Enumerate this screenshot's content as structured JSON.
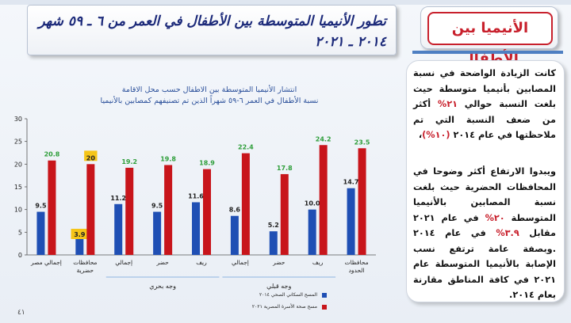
{
  "slide": {
    "title_line1": "تطور الأنيميا المتوسطة بين الأطفال في العمر من ٦ ـ ٥٩ شهر",
    "title_line2": "٢٠١٤ ـ ٢٠٢١",
    "topic": "الأنيميا بين الأطفال",
    "page_number": "٤١",
    "colors": {
      "title": "#1c2a7a",
      "topic": "#c8202c",
      "accent_rule": "#4e7fc2"
    }
  },
  "text_panel": {
    "para1_a": "كانت الزيادة الواضحة في نسبة المصابين بأنيميا متوسطة حيث بلغت النسبة حوالي ",
    "para1_b": "٢١%",
    "para1_c": " أكثر من ضعف النسبة التي تم ملاحظتها في  عام ٢٠١٤ ",
    "para1_d": "(١٠%)",
    "para1_e": "،",
    "para2_a": "ويبدوا الارتفاع أكثر وضوحا في المحافظات الحضرية حيث بلغت نسبة المصابين بالأنيميا المتوسطة ",
    "para2_b": "٢٠%",
    "para2_c": " في عام ٢٠٢١ مقابل ",
    "para2_d": "٣.٩%",
    "para2_e": " في عام ٢٠١٤ .وبصفة عامة ترتفع نسب الإصابة بالأنيميا المتوسطة عام ٢٠٢١ في كافة المناطق مقارنة بعام ٢٠١٤."
  },
  "chart_data": {
    "type": "bar",
    "title": "انتشار الأنيميا المتوسطة بين الاطفال حسب محل الاقامة",
    "subtitle": "نسبة الأطفال في العمر ٦-٥٩ شهراً الذين تم تصنيفهم كمصابين بالأنيميا",
    "categories": [
      "إجمالي مصر",
      "محافظات حضرية",
      "إجمالي",
      "حضر",
      "ريف",
      "إجمالي",
      "حضر",
      "ريف",
      "محافظات الحدود"
    ],
    "groups": [
      {
        "label": "وجه بحري",
        "from": 2,
        "to": 4
      },
      {
        "label": "وجه قبلي",
        "from": 5,
        "to": 7
      }
    ],
    "series": [
      {
        "name": "المسح السكاني الصحي ٢٠١٤",
        "color": "#1f4fb4",
        "label_color": "#222222",
        "values": [
          9.5,
          3.9,
          11.2,
          9.5,
          11.6,
          8.6,
          5.2,
          10.0,
          14.7
        ]
      },
      {
        "name": "مسح صحة الأسرة المصرية ٢٠٢١",
        "color": "#c8151b",
        "label_color": "#2e9e3a",
        "values": [
          20.8,
          20,
          19.2,
          19.8,
          18.9,
          22.4,
          17.8,
          24.2,
          23.5
        ]
      }
    ],
    "value_labels": [
      [
        "9.5",
        "3.9",
        "11.2",
        "9.5",
        "11.6",
        "8.6",
        "5.2",
        "10.0",
        "14.7"
      ],
      [
        "20.8",
        "20",
        "19.2",
        "19.8",
        "18.9",
        "22.4",
        "17.8",
        "24.2",
        "23.5"
      ]
    ],
    "highlighted_category": 1,
    "highlight_color": "#f5c518",
    "ylim": [
      0,
      30
    ],
    "yticks": [
      0,
      5,
      10,
      15,
      20,
      25,
      30
    ],
    "grid": false,
    "legend_position": "bottom-left"
  }
}
